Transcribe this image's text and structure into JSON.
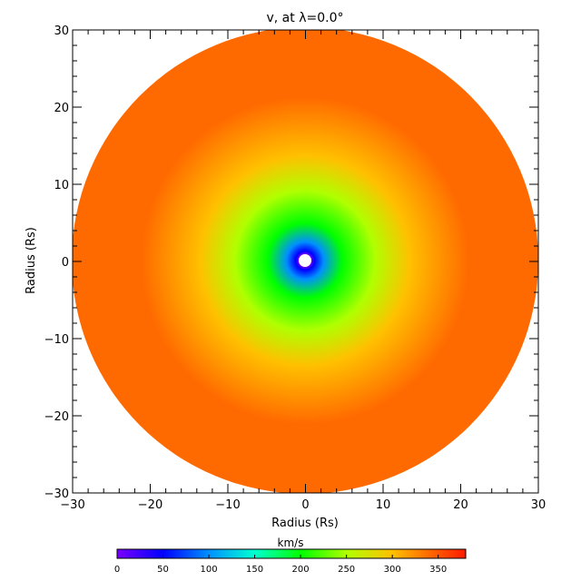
{
  "chart_data": {
    "type": "heatmap",
    "title": "v, at λ=0.0°",
    "xlabel": "Radius (Rs)",
    "ylabel": "Radius (Rs)",
    "xlim": [
      -30,
      30
    ],
    "ylim": [
      -30,
      30
    ],
    "x_ticks": [
      "−30",
      "−20",
      "−10",
      "0",
      "10",
      "20",
      "30"
    ],
    "y_ticks": [
      "−30",
      "−20",
      "−10",
      "0",
      "10",
      "20",
      "30"
    ],
    "x_tick_values": [
      -30,
      -20,
      -10,
      0,
      10,
      20,
      30
    ],
    "y_tick_values": [
      -30,
      -20,
      -10,
      0,
      10,
      20,
      30
    ],
    "disk_outer_radius": 30,
    "disk_inner_radius": 0.8,
    "grid": false,
    "colorbar": {
      "label": "km/s",
      "range": [
        0,
        380
      ],
      "ticks": [
        "0",
        "50",
        "100",
        "150",
        "200",
        "250",
        "300",
        "350"
      ],
      "tick_values": [
        0,
        50,
        100,
        150,
        200,
        250,
        300,
        350
      ],
      "placement": "bottom"
    },
    "colormap_stops": [
      {
        "value": 0,
        "color": "#7a00ff"
      },
      {
        "value": 50,
        "color": "#0000ff"
      },
      {
        "value": 100,
        "color": "#0090ff"
      },
      {
        "value": 150,
        "color": "#00ffd0"
      },
      {
        "value": 200,
        "color": "#00ff00"
      },
      {
        "value": 250,
        "color": "#b0ff00"
      },
      {
        "value": 300,
        "color": "#ffc000"
      },
      {
        "value": 340,
        "color": "#ff6a00"
      },
      {
        "value": 380,
        "color": "#ff1a00"
      }
    ]
  }
}
